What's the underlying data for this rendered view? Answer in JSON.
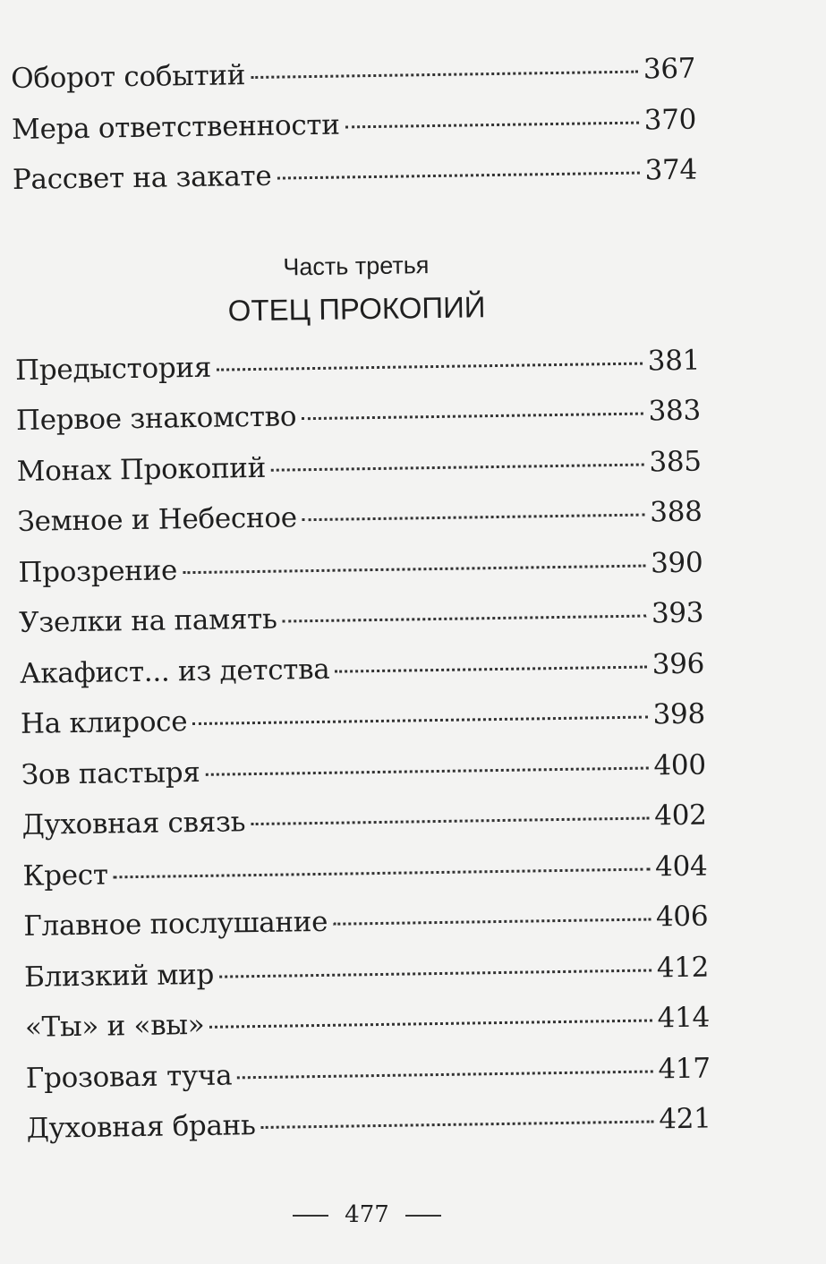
{
  "entries_top": [
    {
      "title": "Оборот событий",
      "page": "367"
    },
    {
      "title": "Мера ответственности",
      "page": "370"
    },
    {
      "title": "Рассвет на закате",
      "page": "374"
    }
  ],
  "part_label": "Часть третья",
  "section_title": "ОТЕЦ ПРОКОПИЙ",
  "entries": [
    {
      "title": "Предыстория",
      "page": "381"
    },
    {
      "title": "Первое знакомство",
      "page": "383"
    },
    {
      "title": "Монах Прокопий",
      "page": "385"
    },
    {
      "title": "Земное и Небесное",
      "page": "388"
    },
    {
      "title": "Прозрение",
      "page": "390"
    },
    {
      "title": "Узелки на память",
      "page": "393"
    },
    {
      "title": "Акафист... из детства",
      "page": "396"
    },
    {
      "title": "На клиросе",
      "page": "398"
    },
    {
      "title": "Зов пастыря",
      "page": "400"
    },
    {
      "title": "Духовная связь",
      "page": "402"
    },
    {
      "title": "Крест",
      "page": "404"
    },
    {
      "title": "Главное послушание",
      "page": "406"
    },
    {
      "title": "Близкий мир",
      "page": "412"
    },
    {
      "title": "«Ты» и «вы»",
      "page": "414"
    },
    {
      "title": "Грозовая туча",
      "page": "417"
    },
    {
      "title": "Духовная брань",
      "page": "421"
    }
  ],
  "page_number": "477"
}
